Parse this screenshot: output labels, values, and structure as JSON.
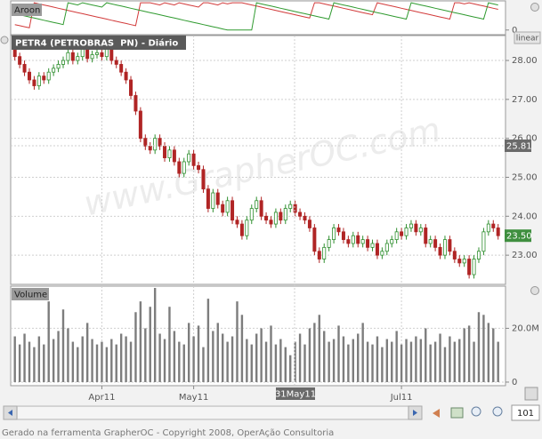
{
  "chart_data": [
    {
      "type": "line",
      "title": "Aroon",
      "series": [
        {
          "color": "#d23a3a",
          "values": [
            20,
            16,
            12,
            8,
            100,
            96,
            92,
            88,
            84,
            80,
            76,
            72,
            68,
            64,
            60,
            56,
            52,
            48,
            44,
            40,
            36,
            32,
            28,
            24,
            20,
            16,
            100,
            100,
            100,
            96,
            92,
            100,
            96,
            92,
            100,
            96,
            92,
            88,
            84,
            100,
            100,
            96,
            92,
            100,
            96,
            100,
            100,
            100,
            96,
            92,
            88,
            84,
            80,
            76,
            72,
            68,
            64,
            60,
            56,
            52,
            48,
            44,
            100,
            100,
            96,
            92,
            88,
            84,
            80,
            76,
            72,
            68,
            64,
            60,
            56,
            100,
            96,
            92,
            88,
            84,
            80,
            76,
            72,
            68,
            64,
            60,
            56,
            52,
            48,
            44,
            40,
            100,
            100,
            96,
            100,
            96,
            92,
            88,
            84,
            80,
            76
          ]
        },
        {
          "color": "#2f9a2f",
          "values": [
            60,
            56,
            52,
            48,
            44,
            40,
            36,
            32,
            28,
            24,
            20,
            100,
            96,
            92,
            100,
            96,
            92,
            88,
            84,
            100,
            96,
            92,
            88,
            84,
            80,
            76,
            72,
            68,
            64,
            60,
            56,
            52,
            48,
            44,
            40,
            36,
            32,
            28,
            24,
            20,
            16,
            12,
            8,
            4,
            0,
            0,
            0,
            0,
            0,
            0,
            100,
            96,
            92,
            88,
            84,
            80,
            76,
            72,
            68,
            64,
            60,
            56,
            52,
            48,
            44,
            40,
            100,
            96,
            92,
            88,
            84,
            80,
            76,
            72,
            68,
            64,
            60,
            56,
            52,
            48,
            44,
            40,
            100,
            96,
            92,
            88,
            84,
            80,
            76,
            72,
            68,
            64,
            60,
            56,
            52,
            48,
            44,
            40,
            100,
            96,
            92
          ]
        }
      ],
      "ylim": [
        -17,
        107
      ],
      "yticks": [
        0
      ]
    },
    {
      "type": "candlestick",
      "title": "PETR4 (PETROBRAS  PN) - Diário",
      "scale": "linear",
      "watermark": "www.GrapherOC.com",
      "open": [
        28.3,
        28.1,
        27.9,
        27.7,
        27.5,
        27.35,
        27.6,
        27.5,
        27.7,
        27.8,
        27.9,
        28.0,
        28.2,
        28.0,
        28.1,
        28.3,
        28.05,
        28.15,
        28.2,
        28.1,
        28.3,
        28.0,
        27.9,
        27.7,
        27.5,
        27.1,
        26.7,
        26.0,
        25.8,
        25.7,
        26.0,
        25.8,
        25.5,
        25.7,
        25.4,
        25.1,
        25.4,
        25.6,
        25.3,
        25.2,
        24.7,
        24.2,
        24.6,
        24.3,
        24.1,
        24.4,
        23.9,
        23.8,
        23.5,
        23.9,
        24.2,
        24.4,
        24.0,
        23.9,
        23.8,
        24.1,
        23.9,
        24.2,
        24.3,
        24.1,
        24.0,
        23.9,
        23.7,
        23.1,
        22.9,
        23.2,
        23.4,
        23.7,
        23.6,
        23.4,
        23.3,
        23.5,
        23.3,
        23.4,
        23.2,
        23.3,
        23.0,
        23.1,
        23.3,
        23.4,
        23.6,
        23.5,
        23.7,
        23.8,
        23.6,
        23.7,
        23.3,
        23.4,
        23.2,
        23.0,
        23.4,
        23.1,
        22.9,
        22.8,
        22.9,
        22.5,
        22.9,
        23.1,
        23.6,
        23.8,
        23.7
      ],
      "high": [
        28.4,
        28.2,
        28.0,
        27.8,
        27.6,
        27.7,
        27.7,
        27.8,
        27.9,
        28.0,
        28.1,
        28.3,
        28.3,
        28.2,
        28.4,
        28.4,
        28.25,
        28.3,
        28.3,
        28.4,
        28.4,
        28.1,
        28.0,
        27.8,
        27.6,
        27.2,
        26.8,
        26.1,
        25.9,
        26.1,
        26.1,
        25.9,
        25.8,
        25.8,
        25.5,
        25.5,
        25.7,
        25.7,
        25.4,
        25.3,
        24.8,
        24.7,
        24.7,
        24.4,
        24.5,
        24.5,
        24.0,
        23.9,
        24.0,
        24.3,
        24.5,
        24.5,
        24.1,
        24.0,
        24.2,
        24.2,
        24.3,
        24.4,
        24.4,
        24.2,
        24.1,
        24.0,
        23.8,
        23.2,
        23.3,
        23.5,
        23.8,
        23.8,
        23.7,
        23.5,
        23.6,
        23.6,
        23.5,
        23.5,
        23.4,
        23.4,
        23.2,
        23.4,
        23.5,
        23.7,
        23.7,
        23.8,
        23.9,
        23.9,
        23.8,
        23.8,
        23.5,
        23.5,
        23.3,
        23.5,
        23.5,
        23.2,
        23.0,
        23.0,
        23.0,
        23.0,
        23.2,
        23.7,
        23.9,
        23.9,
        23.8
      ],
      "low": [
        28.0,
        27.8,
        27.6,
        27.4,
        27.25,
        27.25,
        27.4,
        27.4,
        27.6,
        27.7,
        27.8,
        27.9,
        27.9,
        27.9,
        28.0,
        27.95,
        27.95,
        28.05,
        28.0,
        28.0,
        27.9,
        27.8,
        27.6,
        27.4,
        27.0,
        26.6,
        25.9,
        25.7,
        25.6,
        25.6,
        25.7,
        25.4,
        25.4,
        25.3,
        25.0,
        25.0,
        25.3,
        25.2,
        25.1,
        24.6,
        24.1,
        24.1,
        24.2,
        24.0,
        24.0,
        23.8,
        23.7,
        23.4,
        23.4,
        23.8,
        24.1,
        23.9,
        23.8,
        23.7,
        23.7,
        23.8,
        23.8,
        24.1,
        24.0,
        23.9,
        23.8,
        23.6,
        23.0,
        22.8,
        22.8,
        23.1,
        23.3,
        23.5,
        23.3,
        23.2,
        23.2,
        23.2,
        23.2,
        23.1,
        23.1,
        22.9,
        22.9,
        23.0,
        23.2,
        23.3,
        23.4,
        23.4,
        23.6,
        23.5,
        23.5,
        23.2,
        23.2,
        23.1,
        22.9,
        22.9,
        23.0,
        22.8,
        22.7,
        22.7,
        22.4,
        22.4,
        22.8,
        23.0,
        23.5,
        23.6,
        23.4
      ],
      "close": [
        28.1,
        27.9,
        27.7,
        27.5,
        27.35,
        27.6,
        27.5,
        27.7,
        27.8,
        27.9,
        28.0,
        28.2,
        28.0,
        28.1,
        28.3,
        28.05,
        28.15,
        28.2,
        28.1,
        28.3,
        28.0,
        27.9,
        27.7,
        27.5,
        27.1,
        26.7,
        26.0,
        25.8,
        25.7,
        26.0,
        25.8,
        25.5,
        25.7,
        25.4,
        25.1,
        25.4,
        25.6,
        25.3,
        25.2,
        24.7,
        24.2,
        24.6,
        24.3,
        24.1,
        24.4,
        23.9,
        23.8,
        23.5,
        23.9,
        24.2,
        24.4,
        24.0,
        23.9,
        23.8,
        24.1,
        23.9,
        24.2,
        24.3,
        24.1,
        24.0,
        23.9,
        23.7,
        23.1,
        22.9,
        23.2,
        23.4,
        23.7,
        23.6,
        23.4,
        23.3,
        23.5,
        23.3,
        23.4,
        23.2,
        23.3,
        23.0,
        23.1,
        23.3,
        23.4,
        23.6,
        23.5,
        23.7,
        23.8,
        23.6,
        23.7,
        23.3,
        23.4,
        23.2,
        23.0,
        23.4,
        23.1,
        22.9,
        22.8,
        22.9,
        22.5,
        22.9,
        23.1,
        23.6,
        23.8,
        23.7,
        23.5
      ],
      "up_color": "#2f8f2f",
      "down_color": "#b02525",
      "ylim": [
        22.25,
        28.64
      ],
      "yticks": [
        {
          "value": 28,
          "label": "28.00"
        },
        {
          "value": 27,
          "label": "27.00"
        },
        {
          "value": 26,
          "label": "26.00"
        },
        {
          "value": 25,
          "label": "25.00"
        },
        {
          "value": 24,
          "label": "24.00"
        },
        {
          "value": 23,
          "label": "23.00"
        }
      ],
      "grid": true,
      "last_price": {
        "value": 23.5,
        "label": "23.50"
      },
      "crosshair_price": 25.81
    },
    {
      "type": "bar",
      "title": "Volume",
      "color": "#7d7d7d",
      "values": [
        17,
        14,
        18,
        15,
        13,
        17,
        14,
        30,
        16,
        19,
        27,
        20,
        15,
        13,
        17,
        22,
        16,
        14,
        15,
        13,
        16,
        14,
        18,
        17,
        15,
        26,
        30,
        20,
        28,
        35,
        18,
        16,
        28,
        19,
        15,
        14,
        22,
        17,
        21,
        13,
        31,
        19,
        22,
        18,
        15,
        17,
        30,
        25,
        16,
        14,
        18,
        20,
        15,
        21,
        14,
        16,
        13,
        10,
        15,
        18,
        14,
        20,
        22,
        25,
        19,
        15,
        16,
        21,
        17,
        14,
        16,
        18,
        22,
        15,
        14,
        17,
        13,
        16,
        15,
        19,
        14,
        16,
        15,
        17,
        16,
        20,
        14,
        15,
        18,
        13,
        17,
        15,
        16,
        20,
        21,
        15,
        26,
        25,
        22,
        20,
        15
      ],
      "ylim": [
        -1.33,
        35.67
      ],
      "yticks": [
        {
          "value": 20,
          "label": "20.0M"
        },
        0
      ],
      "grid": true
    }
  ],
  "x_axis": {
    "categories": [
      null,
      null,
      null,
      null,
      null,
      null,
      null,
      null,
      null,
      null,
      null,
      null,
      null,
      null,
      null,
      null,
      null,
      null,
      "Apr11",
      null,
      null,
      null,
      null,
      null,
      null,
      null,
      null,
      null,
      null,
      null,
      null,
      null,
      null,
      null,
      null,
      null,
      null,
      "May11",
      null,
      null,
      null,
      null,
      null,
      null,
      null,
      null,
      null,
      null,
      null,
      null,
      null,
      null,
      null,
      null,
      null,
      null,
      null,
      null,
      null,
      null,
      null,
      null,
      null,
      null,
      null,
      null,
      null,
      null,
      null,
      null,
      null,
      null,
      null,
      null,
      null,
      null,
      null,
      null,
      null,
      null,
      "Jul11",
      null,
      null,
      null,
      null,
      null,
      null,
      null,
      null,
      null,
      null,
      null,
      null,
      null,
      null,
      null,
      null,
      null,
      null,
      null,
      null
    ],
    "crosshair_label": "31May11"
  },
  "controls": {
    "visible_bars": 101
  },
  "footer": "Gerado na ferramenta GrapherOC - Copyright 2008, OperAção Consultoria"
}
